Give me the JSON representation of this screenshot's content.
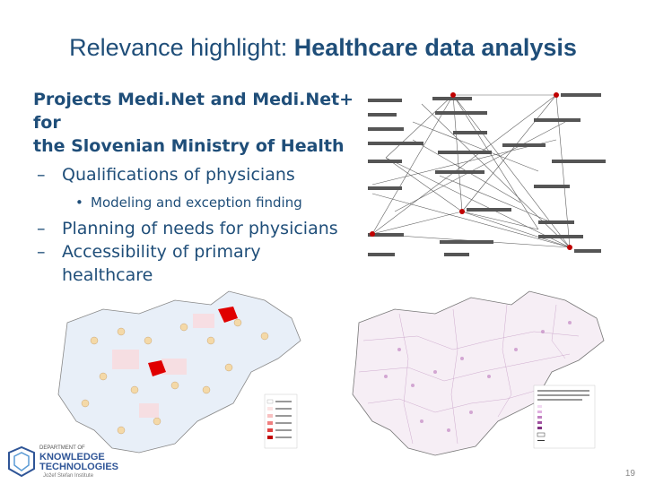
{
  "slide": {
    "title_prefix": "Relevance highlight: ",
    "title_bold": "Healthcare data analysis",
    "bullets": {
      "main_line1": "Projects Medi.Net and Medi.Net+ for",
      "main_line2": "the  Slovenian Ministry of Health",
      "sub1": "Qualifications of physicians",
      "subsub1": "Modeling and exception finding",
      "sub2": "Planning of needs for physicians",
      "sub3_line1": "Accessibility of primary",
      "sub3_line2": "healthcare"
    },
    "page_number": "19"
  },
  "logo": {
    "line1": "DEPARTMENT OF",
    "line2": "KNOWLEDGE",
    "line3": "TECHNOLOGIES",
    "line4": "Jožef Stefan Institute"
  },
  "colors": {
    "title": "#1F4E79",
    "accent_red": "#C00000"
  }
}
